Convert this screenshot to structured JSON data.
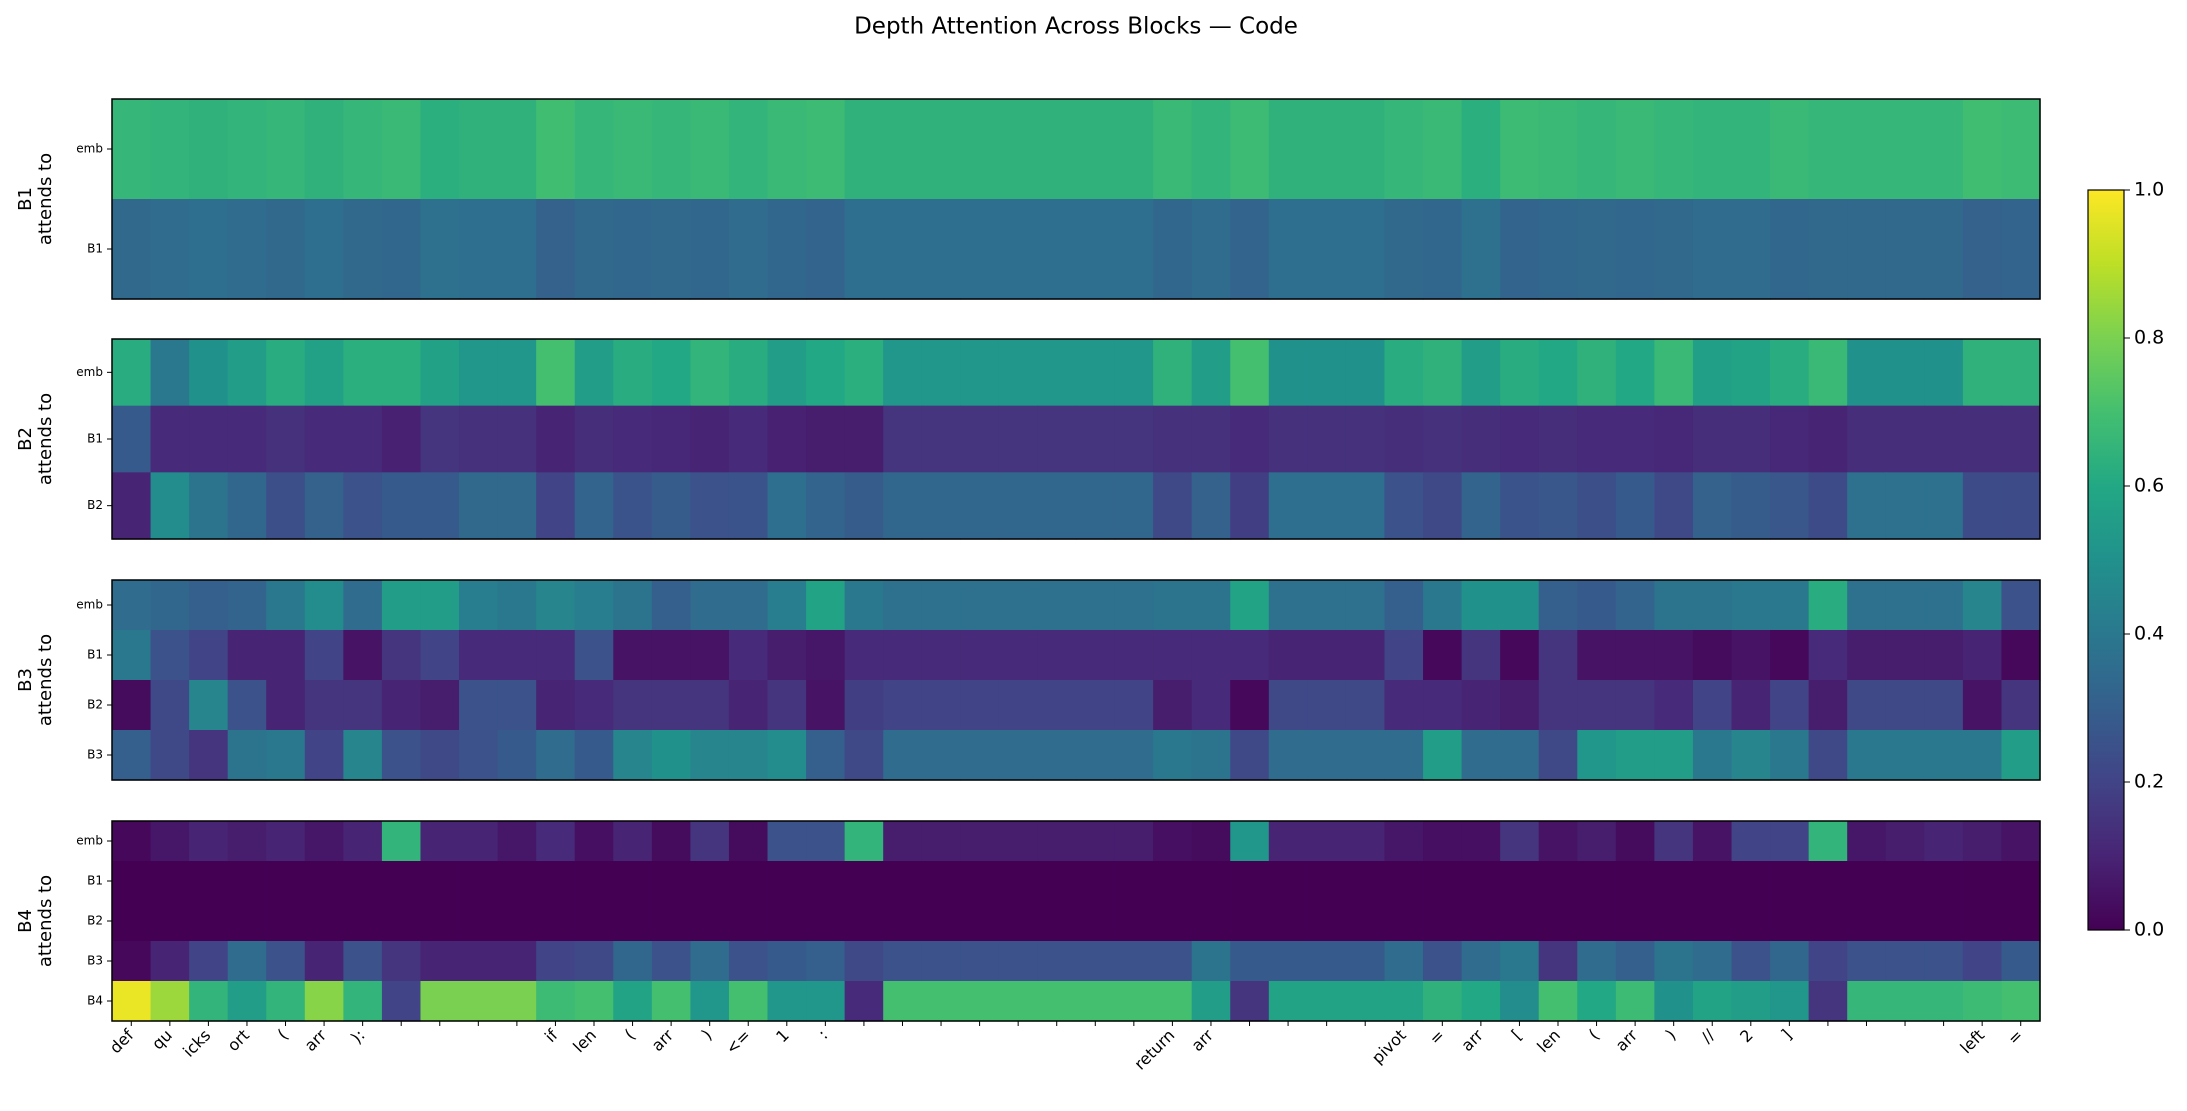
{
  "chart_data": {
    "type": "heatmap",
    "title": "Depth Attention Across Blocks — Code",
    "categories": [
      "def",
      "qu",
      "icks",
      "ort",
      "(",
      "arr",
      "):",
      null,
      null,
      null,
      null,
      "if",
      "len",
      "(",
      "arr",
      ")",
      "<=",
      "1",
      ":",
      null,
      null,
      null,
      null,
      null,
      null,
      null,
      null,
      "return",
      "arr",
      null,
      null,
      null,
      null,
      "pivot",
      "=",
      "arr",
      "[",
      "len",
      "(",
      "arr",
      ")",
      "//",
      "2",
      "]",
      null,
      null,
      null,
      null,
      "left",
      "="
    ],
    "colormap": "viridis",
    "clim": [
      0,
      1
    ],
    "cticks": [
      {
        "value": 0,
        "label": "0.0"
      },
      0.2,
      0.4,
      0.6,
      0.8,
      {
        "value": 1,
        "label": "1.0"
      }
    ],
    "panels": [
      {
        "ylabel": [
          "B1",
          "attends to"
        ],
        "rows": [
          "emb",
          "B1"
        ],
        "values": [
          [
            0.66,
            0.65,
            0.64,
            0.65,
            0.66,
            0.64,
            0.66,
            0.67,
            0.63,
            0.64,
            0.64,
            0.69,
            0.66,
            0.67,
            0.66,
            0.67,
            0.65,
            0.67,
            0.68,
            0.64,
            0.64,
            0.64,
            0.64,
            0.64,
            0.64,
            0.64,
            0.64,
            0.67,
            0.65,
            0.68,
            0.64,
            0.64,
            0.64,
            0.66,
            0.67,
            0.63,
            0.68,
            0.67,
            0.66,
            0.67,
            0.66,
            0.65,
            0.65,
            0.67,
            0.66,
            0.66,
            0.66,
            0.66,
            0.69,
            0.68
          ],
          [
            0.34,
            0.35,
            0.36,
            0.35,
            0.34,
            0.36,
            0.34,
            0.33,
            0.37,
            0.36,
            0.36,
            0.31,
            0.34,
            0.33,
            0.34,
            0.33,
            0.35,
            0.33,
            0.32,
            0.36,
            0.36,
            0.36,
            0.36,
            0.36,
            0.36,
            0.36,
            0.36,
            0.33,
            0.35,
            0.32,
            0.36,
            0.36,
            0.36,
            0.34,
            0.33,
            0.37,
            0.32,
            0.33,
            0.34,
            0.33,
            0.34,
            0.35,
            0.35,
            0.33,
            0.34,
            0.34,
            0.34,
            0.34,
            0.31,
            0.32
          ]
        ]
      },
      {
        "ylabel": [
          "B2",
          "attends to"
        ],
        "rows": [
          "emb",
          "B1",
          "B2"
        ],
        "values": [
          [
            0.62,
            0.4,
            0.5,
            0.55,
            0.62,
            0.57,
            0.63,
            0.63,
            0.57,
            0.52,
            0.52,
            0.7,
            0.55,
            0.62,
            0.6,
            0.65,
            0.62,
            0.55,
            0.6,
            0.63,
            0.52,
            0.52,
            0.52,
            0.52,
            0.52,
            0.52,
            0.52,
            0.64,
            0.55,
            0.7,
            0.5,
            0.5,
            0.5,
            0.62,
            0.64,
            0.55,
            0.62,
            0.6,
            0.64,
            0.6,
            0.67,
            0.56,
            0.58,
            0.62,
            0.67,
            0.5,
            0.5,
            0.5,
            0.64,
            0.64
          ],
          [
            0.28,
            0.12,
            0.12,
            0.12,
            0.14,
            0.12,
            0.12,
            0.09,
            0.15,
            0.14,
            0.14,
            0.1,
            0.13,
            0.12,
            0.11,
            0.1,
            0.12,
            0.09,
            0.08,
            0.08,
            0.15,
            0.15,
            0.15,
            0.15,
            0.15,
            0.15,
            0.15,
            0.14,
            0.14,
            0.12,
            0.14,
            0.14,
            0.14,
            0.13,
            0.14,
            0.13,
            0.12,
            0.13,
            0.12,
            0.12,
            0.11,
            0.13,
            0.13,
            0.11,
            0.1,
            0.13,
            0.13,
            0.13,
            0.13,
            0.13
          ],
          [
            0.1,
            0.48,
            0.38,
            0.33,
            0.24,
            0.31,
            0.25,
            0.28,
            0.28,
            0.34,
            0.34,
            0.2,
            0.32,
            0.26,
            0.29,
            0.25,
            0.26,
            0.36,
            0.32,
            0.29,
            0.33,
            0.33,
            0.33,
            0.33,
            0.33,
            0.33,
            0.33,
            0.22,
            0.31,
            0.18,
            0.36,
            0.36,
            0.36,
            0.25,
            0.22,
            0.32,
            0.26,
            0.27,
            0.24,
            0.28,
            0.22,
            0.31,
            0.29,
            0.27,
            0.23,
            0.37,
            0.37,
            0.37,
            0.23,
            0.23
          ]
        ]
      },
      {
        "ylabel": [
          "B3",
          "attends to"
        ],
        "rows": [
          "emb",
          "B1",
          "B2",
          "B3"
        ],
        "values": [
          [
            0.35,
            0.33,
            0.3,
            0.32,
            0.4,
            0.48,
            0.35,
            0.55,
            0.55,
            0.42,
            0.4,
            0.45,
            0.42,
            0.38,
            0.3,
            0.35,
            0.35,
            0.42,
            0.58,
            0.4,
            0.37,
            0.37,
            0.37,
            0.37,
            0.37,
            0.37,
            0.37,
            0.38,
            0.38,
            0.58,
            0.37,
            0.37,
            0.37,
            0.3,
            0.4,
            0.5,
            0.5,
            0.3,
            0.28,
            0.32,
            0.38,
            0.38,
            0.4,
            0.4,
            0.62,
            0.37,
            0.37,
            0.37,
            0.45,
            0.25
          ],
          [
            0.4,
            0.25,
            0.2,
            0.1,
            0.1,
            0.2,
            0.05,
            0.15,
            0.2,
            0.12,
            0.12,
            0.12,
            0.25,
            0.05,
            0.05,
            0.05,
            0.12,
            0.08,
            0.06,
            0.12,
            0.12,
            0.12,
            0.12,
            0.12,
            0.12,
            0.12,
            0.12,
            0.12,
            0.12,
            0.12,
            0.1,
            0.1,
            0.1,
            0.2,
            0.02,
            0.15,
            0.02,
            0.15,
            0.05,
            0.05,
            0.05,
            0.03,
            0.05,
            0.02,
            0.12,
            0.08,
            0.08,
            0.08,
            0.1,
            0.02
          ],
          [
            0.03,
            0.22,
            0.45,
            0.25,
            0.1,
            0.15,
            0.15,
            0.1,
            0.08,
            0.25,
            0.25,
            0.1,
            0.12,
            0.15,
            0.15,
            0.15,
            0.1,
            0.15,
            0.05,
            0.18,
            0.2,
            0.2,
            0.2,
            0.2,
            0.2,
            0.2,
            0.2,
            0.08,
            0.12,
            0.02,
            0.22,
            0.22,
            0.22,
            0.12,
            0.12,
            0.1,
            0.08,
            0.15,
            0.15,
            0.15,
            0.12,
            0.2,
            0.1,
            0.2,
            0.08,
            0.22,
            0.22,
            0.22,
            0.05,
            0.15
          ],
          [
            0.3,
            0.22,
            0.15,
            0.38,
            0.4,
            0.2,
            0.45,
            0.25,
            0.22,
            0.25,
            0.28,
            0.35,
            0.28,
            0.45,
            0.5,
            0.45,
            0.45,
            0.48,
            0.3,
            0.22,
            0.35,
            0.35,
            0.35,
            0.35,
            0.35,
            0.35,
            0.35,
            0.4,
            0.38,
            0.22,
            0.35,
            0.35,
            0.35,
            0.35,
            0.55,
            0.35,
            0.35,
            0.22,
            0.52,
            0.55,
            0.55,
            0.4,
            0.45,
            0.4,
            0.22,
            0.4,
            0.4,
            0.4,
            0.4,
            0.55
          ]
        ]
      },
      {
        "ylabel": [
          "B4",
          "attends to"
        ],
        "rows": [
          "emb",
          "B1",
          "B2",
          "B3",
          "B4"
        ],
        "values": [
          [
            0.02,
            0.06,
            0.1,
            0.08,
            0.1,
            0.06,
            0.1,
            0.65,
            0.1,
            0.1,
            0.06,
            0.12,
            0.04,
            0.1,
            0.03,
            0.15,
            0.03,
            0.25,
            0.25,
            0.65,
            0.08,
            0.08,
            0.08,
            0.08,
            0.08,
            0.08,
            0.08,
            0.04,
            0.03,
            0.52,
            0.1,
            0.1,
            0.1,
            0.06,
            0.04,
            0.04,
            0.15,
            0.05,
            0.08,
            0.03,
            0.15,
            0.05,
            0.2,
            0.2,
            0.65,
            0.06,
            0.08,
            0.1,
            0.08,
            0.05
          ],
          [
            0,
            0,
            0,
            0,
            0,
            0,
            0,
            0,
            0,
            0,
            0,
            0,
            0,
            0,
            0,
            0,
            0,
            0,
            0,
            0,
            0,
            0,
            0,
            0,
            0,
            0,
            0,
            0,
            0,
            0,
            0,
            0,
            0,
            0,
            0,
            0,
            0,
            0,
            0,
            0,
            0,
            0,
            0,
            0,
            0,
            0,
            0,
            0,
            0,
            0
          ],
          [
            0,
            0,
            0,
            0,
            0,
            0,
            0,
            0,
            0,
            0,
            0,
            0,
            0,
            0,
            0,
            0,
            0,
            0,
            0,
            0,
            0,
            0,
            0,
            0,
            0,
            0,
            0,
            0,
            0,
            0,
            0,
            0,
            0,
            0,
            0,
            0,
            0,
            0,
            0,
            0,
            0,
            0,
            0,
            0,
            0,
            0,
            0,
            0,
            0,
            0
          ],
          [
            0.02,
            0.1,
            0.2,
            0.35,
            0.25,
            0.1,
            0.25,
            0.15,
            0.1,
            0.1,
            0.1,
            0.2,
            0.22,
            0.33,
            0.25,
            0.35,
            0.25,
            0.28,
            0.3,
            0.22,
            0.25,
            0.25,
            0.25,
            0.25,
            0.25,
            0.25,
            0.25,
            0.25,
            0.38,
            0.28,
            0.28,
            0.28,
            0.28,
            0.35,
            0.25,
            0.35,
            0.4,
            0.15,
            0.35,
            0.3,
            0.38,
            0.35,
            0.25,
            0.33,
            0.2,
            0.25,
            0.25,
            0.25,
            0.2,
            0.28
          ],
          [
            0.97,
            0.85,
            0.65,
            0.55,
            0.65,
            0.82,
            0.65,
            0.2,
            0.8,
            0.8,
            0.8,
            0.68,
            0.7,
            0.58,
            0.7,
            0.52,
            0.7,
            0.52,
            0.52,
            0.12,
            0.7,
            0.7,
            0.7,
            0.7,
            0.7,
            0.7,
            0.7,
            0.7,
            0.55,
            0.15,
            0.58,
            0.58,
            0.58,
            0.58,
            0.64,
            0.6,
            0.48,
            0.7,
            0.6,
            0.68,
            0.5,
            0.58,
            0.55,
            0.52,
            0.15,
            0.66,
            0.66,
            0.66,
            0.68,
            0.7
          ]
        ]
      }
    ]
  }
}
